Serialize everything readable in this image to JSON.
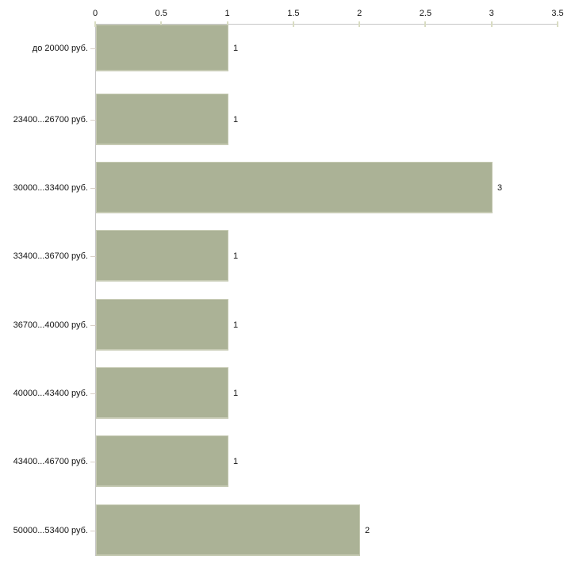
{
  "chart_data": {
    "type": "bar",
    "orientation": "horizontal",
    "title": "",
    "xlabel": "",
    "ylabel": "",
    "categories": [
      "до 20000 руб.",
      "23400...26700 руб.",
      "30000...33400 руб.",
      "33400...36700 руб.",
      "36700...40000 руб.",
      "40000...43400 руб.",
      "43400...46700 руб.",
      "50000...53400 руб."
    ],
    "values": [
      1,
      1,
      3,
      1,
      1,
      1,
      1,
      2
    ],
    "bar_value_labels": [
      "1",
      "1",
      "3",
      "1",
      "1",
      "1",
      "1",
      "2"
    ],
    "axis": {
      "position": "top",
      "min": 0,
      "max": 3.5,
      "tick_values": [
        0,
        0.5,
        1,
        1.5,
        2,
        2.5,
        3,
        3.5
      ],
      "tick_labels": [
        "0",
        "0.5",
        "1",
        "1.5",
        "2",
        "2.5",
        "3",
        "3.5"
      ]
    },
    "grid": false,
    "legend": false,
    "colors": {
      "bar_fill": "#abb296",
      "bar_edge": "#c6cab3",
      "axis_line": "#c5c5c5",
      "x_tick_mark": "#d9dcc2",
      "y_tick_mark": "#d8cfc7",
      "label_text": "#141414",
      "background": "#ffffff"
    }
  }
}
